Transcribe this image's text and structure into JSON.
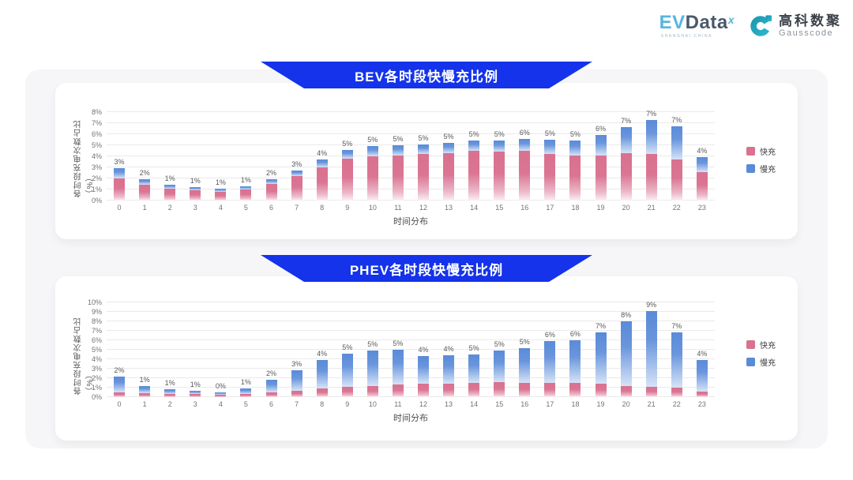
{
  "header": {
    "evdata": {
      "ev": "EV",
      "data": "Data",
      "sup": "x",
      "subtext": "SHANGHAI CHINA"
    },
    "gausscode": {
      "cn": "高科数聚",
      "en": "Gausscode"
    }
  },
  "legend": {
    "fast": "快充",
    "slow": "慢充"
  },
  "colors": {
    "banner_blue": "#1433ea",
    "fast_pink": "#d9718f",
    "slow_blue": "#5a8bd8",
    "panel_gray": "#f6f6f8",
    "gausscode_teal": "#22a9c0"
  },
  "chart_data": [
    {
      "type": "bar",
      "stacked": true,
      "title": "BEV各时段快慢充比例",
      "xlabel": "时间分布",
      "ylabel": "各时段充电次数占比（%）",
      "ylim": [
        0,
        8
      ],
      "ytick_step": 1,
      "ytick_suffix": "%",
      "grid": true,
      "legend_position": "right",
      "categories": [
        "0",
        "1",
        "2",
        "3",
        "4",
        "5",
        "6",
        "7",
        "8",
        "9",
        "10",
        "11",
        "12",
        "13",
        "14",
        "15",
        "16",
        "17",
        "18",
        "19",
        "20",
        "21",
        "22",
        "23"
      ],
      "series": [
        {
          "name": "快充",
          "color": "#d9718f",
          "values": [
            2.0,
            1.4,
            1.05,
            0.95,
            0.8,
            1.0,
            1.5,
            2.2,
            3.0,
            3.8,
            4.0,
            4.1,
            4.25,
            4.3,
            4.5,
            4.4,
            4.5,
            4.2,
            4.1,
            4.1,
            4.3,
            4.2,
            3.7,
            2.6
          ]
        },
        {
          "name": "慢充",
          "color": "#5a8bd8",
          "values": [
            0.95,
            0.5,
            0.35,
            0.3,
            0.25,
            0.3,
            0.4,
            0.5,
            0.7,
            0.8,
            0.9,
            0.9,
            0.85,
            0.9,
            0.9,
            1.0,
            1.1,
            1.3,
            1.35,
            1.8,
            2.35,
            3.1,
            3.0,
            1.3
          ]
        }
      ],
      "total_labels": [
        "3%",
        "2%",
        "1%",
        "1%",
        "1%",
        "1%",
        "2%",
        "3%",
        "4%",
        "5%",
        "5%",
        "5%",
        "5%",
        "5%",
        "5%",
        "5%",
        "6%",
        "5%",
        "5%",
        "6%",
        "7%",
        "7%",
        "7%",
        "4%"
      ]
    },
    {
      "type": "bar",
      "stacked": true,
      "title": "PHEV各时段快慢充比例",
      "xlabel": "时间分布",
      "ylabel": "各时段充电次数占比（%）",
      "ylim": [
        0,
        10
      ],
      "ytick_step": 1,
      "ytick_suffix": "%",
      "grid": true,
      "legend_position": "right",
      "categories": [
        "0",
        "1",
        "2",
        "3",
        "4",
        "5",
        "6",
        "7",
        "8",
        "9",
        "10",
        "11",
        "12",
        "13",
        "14",
        "15",
        "16",
        "17",
        "18",
        "19",
        "20",
        "21",
        "22",
        "23"
      ],
      "series": [
        {
          "name": "快充",
          "color": "#d9718f",
          "values": [
            0.5,
            0.45,
            0.35,
            0.3,
            0.25,
            0.35,
            0.5,
            0.7,
            0.9,
            1.1,
            1.2,
            1.3,
            1.4,
            1.4,
            1.5,
            1.6,
            1.5,
            1.5,
            1.5,
            1.4,
            1.2,
            1.1,
            1.0,
            0.6
          ]
        },
        {
          "name": "慢充",
          "color": "#5a8bd8",
          "values": [
            1.7,
            0.75,
            0.45,
            0.4,
            0.25,
            0.55,
            1.3,
            2.1,
            3.0,
            3.5,
            3.7,
            3.7,
            2.9,
            3.0,
            3.0,
            3.3,
            3.7,
            4.4,
            4.5,
            5.4,
            6.8,
            8.0,
            5.8,
            3.3
          ]
        }
      ],
      "total_labels": [
        "2%",
        "1%",
        "1%",
        "1%",
        "0%",
        "1%",
        "2%",
        "3%",
        "4%",
        "5%",
        "5%",
        "5%",
        "4%",
        "4%",
        "5%",
        "5%",
        "5%",
        "6%",
        "6%",
        "7%",
        "8%",
        "9%",
        "7%",
        "4%"
      ]
    }
  ]
}
